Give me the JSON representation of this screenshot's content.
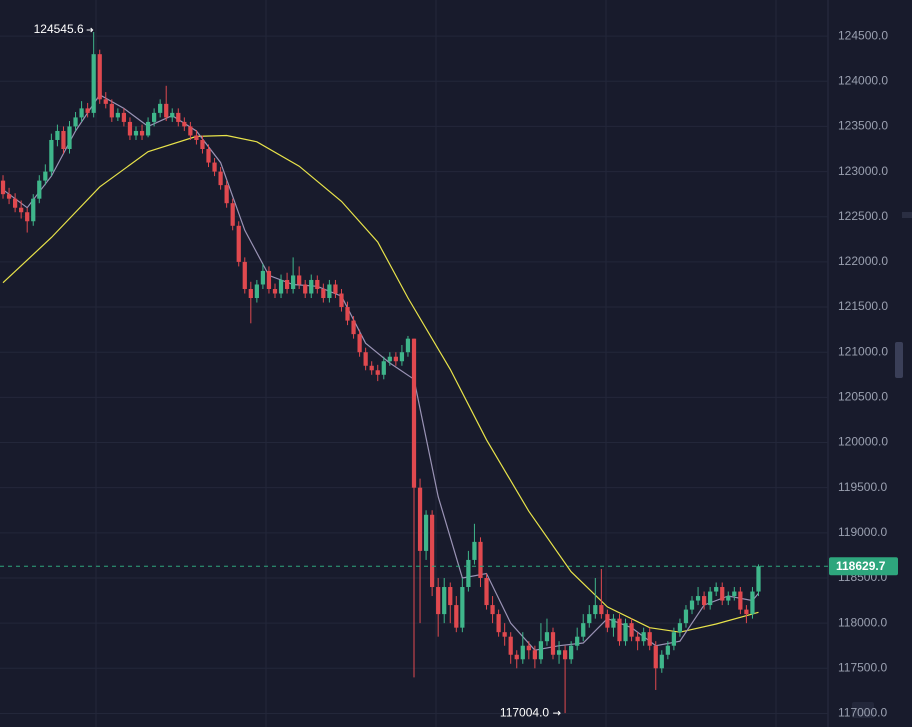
{
  "chart_data": {
    "type": "candlestick",
    "up_color": "#3fb68b",
    "down_color": "#e0494f",
    "grid": true,
    "ylim": [
      116850,
      124900
    ],
    "yticks": [
      {
        "value": 117000,
        "label": "117000.0"
      },
      {
        "value": 117500,
        "label": "117500.0"
      },
      {
        "value": 118000,
        "label": "118000.0"
      },
      {
        "value": 118500,
        "label": "118500.0"
      },
      {
        "value": 119000,
        "label": "119000.0"
      },
      {
        "value": 119500,
        "label": "119500.0"
      },
      {
        "value": 120000,
        "label": "120000.0"
      },
      {
        "value": 120500,
        "label": "120500.0"
      },
      {
        "value": 121000,
        "label": "121000.0"
      },
      {
        "value": 121500,
        "label": "121500.0"
      },
      {
        "value": 122000,
        "label": "122000.0"
      },
      {
        "value": 122500,
        "label": "122500.0"
      },
      {
        "value": 123000,
        "label": "123000.0"
      },
      {
        "value": 123500,
        "label": "123500.0"
      },
      {
        "value": 124000,
        "label": "124000.0"
      },
      {
        "value": 124500,
        "label": "124500.0"
      }
    ],
    "xlim": [
      -0.5,
      136.5
    ],
    "candles": [
      [
        122900,
        122960,
        122700,
        122750
      ],
      [
        122750,
        122820,
        122640,
        122700
      ],
      [
        122700,
        122760,
        122550,
        122600
      ],
      [
        122600,
        122680,
        122480,
        122550
      ],
      [
        122550,
        122600,
        122325,
        122450
      ],
      [
        122450,
        122750,
        122400,
        122700
      ],
      [
        122700,
        122960,
        122650,
        122900
      ],
      [
        122900,
        123080,
        122850,
        123000
      ],
      [
        123000,
        123420,
        122950,
        123350
      ],
      [
        123350,
        123520,
        123280,
        123450
      ],
      [
        123450,
        123500,
        123200,
        123250
      ],
      [
        123250,
        123560,
        123200,
        123500
      ],
      [
        123500,
        123660,
        123450,
        123600
      ],
      [
        123600,
        123780,
        123550,
        123700
      ],
      [
        123700,
        123760,
        123600,
        123650
      ],
      [
        123650,
        124545.6,
        123600,
        124300
      ],
      [
        124300,
        124350,
        123750,
        123800
      ],
      [
        123800,
        123880,
        123700,
        123750
      ],
      [
        123750,
        123800,
        123550,
        123600
      ],
      [
        123600,
        123700,
        123560,
        123650
      ],
      [
        123650,
        123700,
        123500,
        123550
      ],
      [
        123550,
        123600,
        123350,
        123400
      ],
      [
        123400,
        123500,
        123350,
        123450
      ],
      [
        123450,
        123520,
        123350,
        123400
      ],
      [
        123400,
        123600,
        123380,
        123550
      ],
      [
        123550,
        123700,
        123500,
        123650
      ],
      [
        123650,
        123800,
        123600,
        123750
      ],
      [
        123750,
        123950,
        123560,
        123600
      ],
      [
        123600,
        123700,
        123550,
        123650
      ],
      [
        123650,
        123700,
        123500,
        123550
      ],
      [
        123550,
        123600,
        123450,
        123500
      ],
      [
        123500,
        123550,
        123350,
        123400
      ],
      [
        123400,
        123460,
        123300,
        123350
      ],
      [
        123350,
        123400,
        123200,
        123250
      ],
      [
        123250,
        123300,
        123050,
        123100
      ],
      [
        123100,
        123150,
        122950,
        123000
      ],
      [
        123000,
        123050,
        122800,
        122850
      ],
      [
        122850,
        122900,
        122600,
        122650
      ],
      [
        122650,
        122700,
        122350,
        122400
      ],
      [
        122400,
        122450,
        121950,
        122000
      ],
      [
        122000,
        122050,
        121650,
        121700
      ],
      [
        121700,
        121780,
        121320,
        121600
      ],
      [
        121600,
        121800,
        121550,
        121750
      ],
      [
        121750,
        121980,
        121700,
        121900
      ],
      [
        121900,
        121950,
        121650,
        121700
      ],
      [
        121700,
        121760,
        121600,
        121650
      ],
      [
        121650,
        121860,
        121600,
        121800
      ],
      [
        121800,
        121880,
        121650,
        121700
      ],
      [
        121700,
        122050,
        121650,
        121850
      ],
      [
        121850,
        121950,
        121700,
        121750
      ],
      [
        121750,
        121800,
        121600,
        121650
      ],
      [
        121650,
        121860,
        121600,
        121800
      ],
      [
        121800,
        121850,
        121650,
        121700
      ],
      [
        121700,
        121760,
        121550,
        121600
      ],
      [
        121600,
        121800,
        121550,
        121750
      ],
      [
        121750,
        121800,
        121600,
        121650
      ],
      [
        121650,
        121700,
        121450,
        121500
      ],
      [
        121500,
        121560,
        121300,
        121350
      ],
      [
        121350,
        121400,
        121150,
        121200
      ],
      [
        121200,
        121250,
        120950,
        121000
      ],
      [
        121000,
        121050,
        120800,
        120850
      ],
      [
        120850,
        120900,
        120750,
        120800
      ],
      [
        120800,
        120860,
        120680,
        120750
      ],
      [
        120750,
        120950,
        120700,
        120900
      ],
      [
        120900,
        121000,
        120850,
        120950
      ],
      [
        120950,
        121000,
        120850,
        120900
      ],
      [
        120900,
        121080,
        120850,
        121000
      ],
      [
        121000,
        121180,
        120950,
        121150
      ],
      [
        121150,
        121150,
        117400,
        119500
      ],
      [
        119500,
        119600,
        118000,
        118800
      ],
      [
        118800,
        119250,
        118700,
        119200
      ],
      [
        119200,
        119250,
        118300,
        118400
      ],
      [
        118400,
        118500,
        117850,
        118100
      ],
      [
        118100,
        118500,
        118000,
        118400
      ],
      [
        118400,
        118450,
        118000,
        118200
      ],
      [
        118200,
        118300,
        117900,
        117950
      ],
      [
        117950,
        118500,
        117900,
        118400
      ],
      [
        118400,
        118800,
        118350,
        118700
      ],
      [
        118700,
        119100,
        118650,
        118900
      ],
      [
        118900,
        118950,
        118400,
        118500
      ],
      [
        118500,
        118550,
        118150,
        118200
      ],
      [
        118200,
        118300,
        118000,
        118100
      ],
      [
        118100,
        118150,
        117850,
        117900
      ],
      [
        117900,
        118000,
        117750,
        117850
      ],
      [
        117850,
        117900,
        117550,
        117650
      ],
      [
        117650,
        117700,
        117500,
        117600
      ],
      [
        117600,
        117900,
        117550,
        117750
      ],
      [
        117750,
        117800,
        117600,
        117700
      ],
      [
        117700,
        117750,
        117500,
        117600
      ],
      [
        117600,
        118000,
        117550,
        117800
      ],
      [
        117800,
        118050,
        117750,
        117900
      ],
      [
        117900,
        117950,
        117600,
        117650
      ],
      [
        117650,
        117800,
        117550,
        117700
      ],
      [
        117700,
        117750,
        117004,
        117600
      ],
      [
        117600,
        117800,
        117550,
        117750
      ],
      [
        117750,
        117950,
        117700,
        117850
      ],
      [
        117850,
        118100,
        117800,
        118000
      ],
      [
        118000,
        118200,
        117950,
        118100
      ],
      [
        118100,
        118500,
        118050,
        118200
      ],
      [
        118200,
        118600,
        118050,
        118100
      ],
      [
        118100,
        118150,
        117900,
        117950
      ],
      [
        117950,
        118100,
        117850,
        118050
      ],
      [
        118050,
        118100,
        117750,
        117800
      ],
      [
        117800,
        118050,
        117750,
        118000
      ],
      [
        118000,
        118050,
        117800,
        117850
      ],
      [
        117850,
        117900,
        117700,
        117800
      ],
      [
        117800,
        117950,
        117750,
        117900
      ],
      [
        117900,
        117950,
        117700,
        117750
      ],
      [
        117750,
        117800,
        117260,
        117500
      ],
      [
        117500,
        117700,
        117450,
        117650
      ],
      [
        117650,
        117800,
        117600,
        117750
      ],
      [
        117750,
        117950,
        117700,
        117900
      ],
      [
        117900,
        118050,
        117850,
        118000
      ],
      [
        118000,
        118200,
        117950,
        118150
      ],
      [
        118150,
        118300,
        118100,
        118250
      ],
      [
        118250,
        118400,
        118200,
        118300
      ],
      [
        118300,
        118350,
        118150,
        118200
      ],
      [
        118200,
        118400,
        118150,
        118350
      ],
      [
        118350,
        118450,
        118300,
        118400
      ],
      [
        118400,
        118450,
        118200,
        118250
      ],
      [
        118250,
        118350,
        118200,
        118300
      ],
      [
        118300,
        118400,
        118250,
        118350
      ],
      [
        118350,
        118400,
        118100,
        118150
      ],
      [
        118150,
        118200,
        118000,
        118100
      ],
      [
        118100,
        118400,
        118050,
        118350
      ],
      [
        118350,
        118650,
        118300,
        118629.7
      ]
    ],
    "lines": [
      {
        "color": "#e8e34a",
        "x": [
          0,
          8,
          16,
          24,
          32,
          37,
          42,
          49,
          56,
          62,
          67,
          74,
          80,
          87,
          94,
          100,
          107,
          112,
          118,
          125
        ],
        "values": [
          121770,
          122270,
          122830,
          123220,
          123390,
          123400,
          123330,
          123060,
          122670,
          122220,
          121600,
          120810,
          120030,
          119240,
          118570,
          118180,
          117950,
          117900,
          117990,
          118120
        ]
      },
      {
        "color": "#9a93b5",
        "x": [
          0,
          4,
          8,
          12,
          16,
          20,
          24,
          28,
          32,
          36,
          40,
          44,
          48,
          52,
          56,
          60,
          64,
          68,
          72,
          76,
          80,
          84,
          88,
          92,
          96,
          100,
          104,
          108,
          112,
          116,
          120,
          124,
          125
        ],
        "values": [
          122800,
          122600,
          122950,
          123450,
          123850,
          123700,
          123500,
          123620,
          123450,
          123100,
          122350,
          121850,
          121750,
          121730,
          121620,
          121100,
          120880,
          120700,
          119400,
          118500,
          118550,
          118000,
          117700,
          117750,
          117780,
          118050,
          117950,
          117750,
          117800,
          118200,
          118300,
          118250,
          118330
        ]
      }
    ],
    "high_marker": {
      "x": 15,
      "value": 124545.6,
      "label": "124545.6"
    },
    "low_marker": {
      "x": 93,
      "value": 117004,
      "label": "117004.0"
    },
    "last_price": {
      "value": 118629.7,
      "label": "118629.7",
      "color": "#2ea67d"
    }
  }
}
